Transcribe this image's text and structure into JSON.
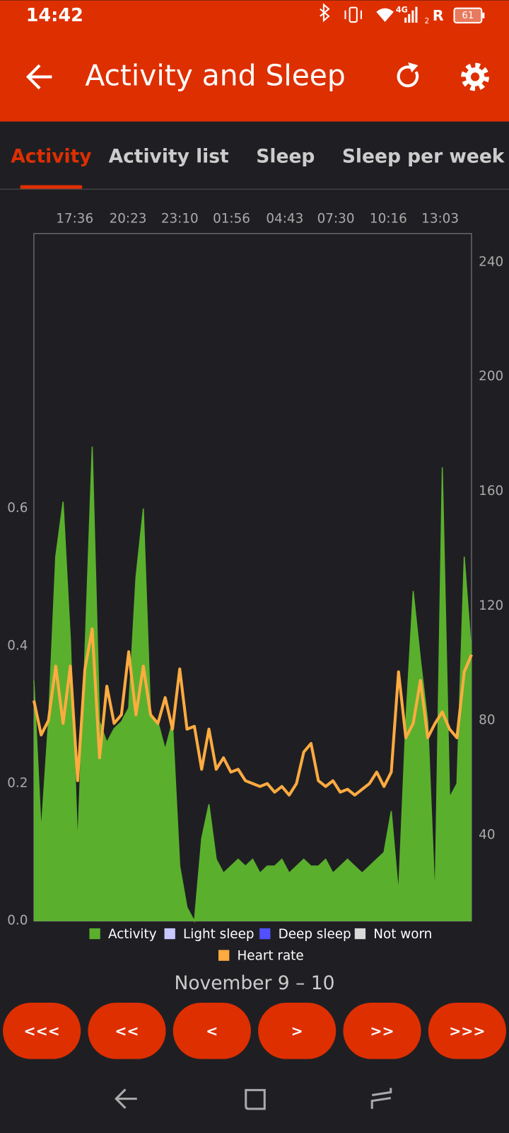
{
  "status_bar": {
    "time": "14:42",
    "network": "4G",
    "roaming": "R",
    "sim": "2",
    "battery": "61"
  },
  "app_bar": {
    "title": "Activity and Sleep"
  },
  "tabs": [
    "Activity",
    "Activity list",
    "Sleep",
    "Sleep per week"
  ],
  "chart_data": {
    "type": "area-line",
    "x": [
      0,
      1,
      2,
      3,
      4,
      5,
      6,
      7,
      8,
      9,
      10,
      11,
      12,
      13,
      14,
      15,
      16,
      17,
      18,
      19,
      20,
      21,
      22,
      23,
      24,
      25,
      26,
      27,
      28,
      29,
      30,
      31,
      32,
      33,
      34,
      35,
      36,
      37,
      38,
      39,
      40,
      41,
      42,
      43,
      44,
      45,
      46,
      47,
      48,
      49,
      50,
      51,
      52,
      53,
      54,
      55,
      56,
      57,
      58,
      59,
      60
    ],
    "xlim": [
      0,
      60
    ],
    "xticks": [
      {
        "value": 5.6,
        "label": "17:36"
      },
      {
        "value": 12.9,
        "label": "20:23"
      },
      {
        "value": 20.0,
        "label": "23:10"
      },
      {
        "value": 27.1,
        "label": "01:56"
      },
      {
        "value": 34.4,
        "label": "04:43"
      },
      {
        "value": 41.4,
        "label": "07:30"
      },
      {
        "value": 48.6,
        "label": "10:16"
      },
      {
        "value": 55.7,
        "label": "13:03"
      }
    ],
    "ylim": [
      0,
      1
    ],
    "yticks": [
      {
        "value": 0,
        "label": "0.0"
      },
      0.2,
      0.4,
      0.6
    ],
    "y2lim": [
      10,
      250
    ],
    "y2ticks": [
      40,
      80,
      120,
      160,
      200,
      240
    ],
    "series": [
      {
        "name": "Activity",
        "color": "#5ab02d",
        "values": [
          0.35,
          0.13,
          0.29,
          0.53,
          0.61,
          0.41,
          0.11,
          0.39,
          0.69,
          0.29,
          0.26,
          0.28,
          0.29,
          0.31,
          0.5,
          0.6,
          0.3,
          0.29,
          0.25,
          0.29,
          0.08,
          0.02,
          0,
          0.12,
          0.17,
          0.09,
          0.07,
          0.08,
          0.09,
          0.08,
          0.09,
          0.07,
          0.08,
          0.08,
          0.09,
          0.07,
          0.08,
          0.09,
          0.08,
          0.08,
          0.09,
          0.07,
          0.08,
          0.09,
          0.08,
          0.07,
          0.08,
          0.09,
          0.1,
          0.16,
          0.04,
          0.29,
          0.48,
          0.38,
          0.29,
          0.03,
          0.66,
          0.18,
          0.2,
          0.53,
          0.39
        ]
      },
      {
        "name": "Light sleep",
        "color": "#c8c8ff",
        "values": [
          null,
          null,
          null,
          null,
          null,
          null,
          null,
          null,
          null,
          null,
          null,
          null,
          null,
          null,
          null,
          null,
          null,
          null,
          null,
          null,
          null,
          null,
          null,
          null,
          null,
          null,
          null,
          null,
          null,
          null,
          null,
          null,
          null,
          null,
          null,
          null,
          null,
          null,
          null,
          null,
          null,
          null,
          null,
          null,
          null,
          null,
          null,
          null,
          null,
          null,
          null,
          null,
          null,
          null,
          null,
          null,
          null,
          null,
          null,
          null,
          null
        ]
      },
      {
        "name": "Deep sleep",
        "color": "#5050ff",
        "values": [
          null,
          null,
          null,
          null,
          null,
          null,
          null,
          null,
          null,
          null,
          null,
          null,
          null,
          null,
          null,
          null,
          null,
          null,
          null,
          null,
          null,
          null,
          null,
          null,
          null,
          null,
          null,
          null,
          null,
          null,
          null,
          null,
          null,
          null,
          null,
          null,
          null,
          null,
          null,
          null,
          null,
          null,
          null,
          null,
          null,
          null,
          null,
          null,
          null,
          null,
          null,
          null,
          null,
          null,
          null,
          null,
          null,
          null,
          null,
          null,
          null
        ]
      },
      {
        "name": "Not worn",
        "color": "#d9d9d9",
        "values": [
          null,
          null,
          null,
          null,
          null,
          null,
          null,
          null,
          null,
          null,
          null,
          null,
          null,
          null,
          null,
          null,
          null,
          null,
          null,
          null,
          null,
          null,
          null,
          null,
          null,
          null,
          null,
          null,
          null,
          null,
          null,
          null,
          null,
          null,
          null,
          null,
          null,
          null,
          null,
          null,
          null,
          null,
          null,
          null,
          null,
          null,
          null,
          null,
          null,
          null,
          null,
          null,
          null,
          null,
          null,
          null,
          null,
          null,
          null,
          null,
          null
        ]
      },
      {
        "name": "Heart rate",
        "color": "#ffab40",
        "axis": "y2",
        "values": [
          87,
          75,
          80,
          99,
          79,
          99,
          59,
          98,
          112,
          67,
          92,
          79,
          82,
          104,
          82,
          99,
          82,
          79,
          88,
          77,
          98,
          77,
          78,
          63,
          77,
          63,
          67,
          62,
          63,
          59,
          58,
          57,
          58,
          55,
          57,
          54,
          58,
          69,
          72,
          59,
          57,
          59,
          55,
          56,
          54,
          56,
          58,
          62,
          57,
          62,
          97,
          74,
          79,
          94,
          74,
          79,
          83,
          77,
          74,
          97,
          103
        ]
      }
    ]
  },
  "date_range": "November 9 – 10",
  "nav_buttons": [
    "<<<",
    "<<",
    "<",
    ">",
    ">>",
    ">>>"
  ]
}
